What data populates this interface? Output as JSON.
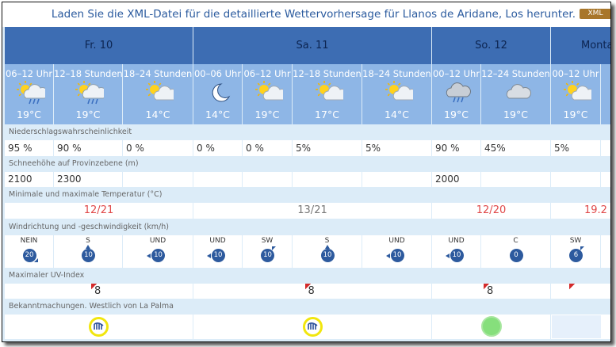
{
  "header": {
    "text": "Laden Sie die XML-Datei für die detaillierte Wettervorhersage für Llanos de Aridane, Los herunter.",
    "button": "XML"
  },
  "rows": {
    "precip": "Niederschlagswahrscheinlichkeit",
    "snow": "Schneehöhe auf Provinzebene (m)",
    "temp": "Minimale und maximale Temperatur (°C)",
    "wind": "Windrichtung und -geschwindigkeit (km/h)",
    "uv": "Maximaler UV-Index",
    "notice": "Bekanntmachungen. Westlich von La Palma"
  },
  "days": [
    {
      "label": "Fr. 10",
      "minmax": "12/21",
      "uv": 8,
      "periods": [
        {
          "label": "06–12 Uhr",
          "temp": "19°C",
          "precip": "95 %",
          "snow": "2100",
          "wind_dir": "NEIN",
          "wind_speed": 20
        },
        {
          "label": "12–18 Stunden",
          "temp": "19°C",
          "precip": "90 %",
          "snow": "2300",
          "wind_dir": "S",
          "wind_speed": 10
        },
        {
          "label": "18–24 Stunden",
          "temp": "14°C",
          "precip": "0 %",
          "wind_dir": "UND",
          "wind_speed": 10
        }
      ]
    },
    {
      "label": "Sa. 11",
      "minmax": "13/21",
      "uv": 8,
      "periods": [
        {
          "label": "00–06 Uhr",
          "temp": "14°C",
          "precip": "0 %",
          "wind_dir": "UND",
          "wind_speed": 10
        },
        {
          "label": "06–12 Uhr",
          "temp": "19°C",
          "precip": "0 %",
          "wind_dir": "SW",
          "wind_speed": 10
        },
        {
          "label": "12–18 Stunden",
          "temp": "17°C",
          "precip": "5%",
          "wind_dir": "S",
          "wind_speed": 10
        },
        {
          "label": "18–24 Stunden",
          "temp": "14°C",
          "precip": "5%",
          "wind_dir": "UND",
          "wind_speed": 10
        }
      ]
    },
    {
      "label": "So. 12",
      "minmax": "12/20",
      "uv": 8,
      "periods": [
        {
          "label": "00–12 Uhr",
          "temp": "19°C",
          "precip": "90 %",
          "snow": "2000",
          "wind_dir": "UND",
          "wind_speed": 10
        },
        {
          "label": "12–24 Stunden",
          "temp": "19°C",
          "precip": "45%",
          "wind_dir": "C",
          "wind_speed": 0
        }
      ]
    },
    {
      "label": "Monta",
      "minmax": "19.2",
      "periods": [
        {
          "label": "00–12 Uhr",
          "temp": "19°C",
          "precip": "5%",
          "wind_dir": "SW",
          "wind_speed": 6
        }
      ]
    }
  ]
}
